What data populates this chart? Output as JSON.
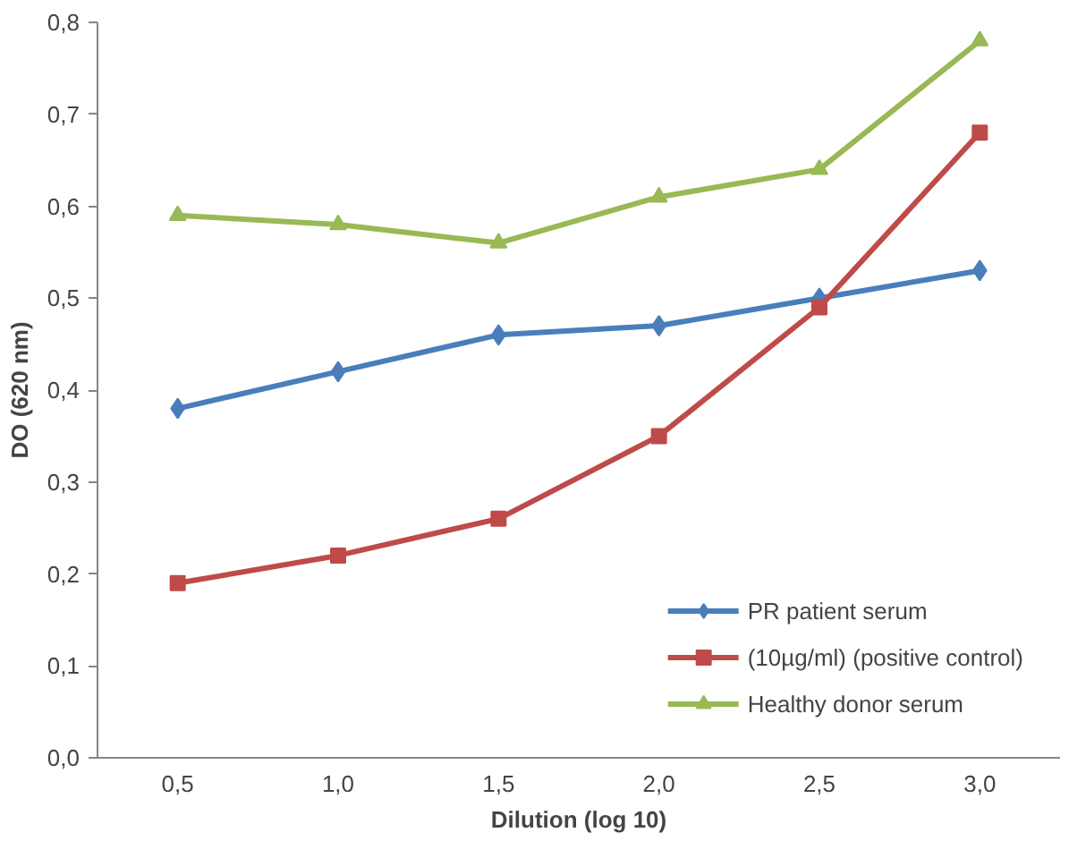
{
  "chart_data": {
    "type": "line",
    "xlabel": "Dilution (log 10)",
    "ylabel": "DO (620 nm)",
    "categories": [
      "0,5",
      "1,0",
      "1,5",
      "2,0",
      "2,5",
      "3,0"
    ],
    "ylim": [
      0,
      0.8
    ],
    "yticks": [
      {
        "value": 0,
        "label": "0,0"
      },
      {
        "value": 0.1,
        "label": "0,1"
      },
      {
        "value": 0.2,
        "label": "0,2"
      },
      {
        "value": 0.3,
        "label": "0,3"
      },
      {
        "value": 0.4,
        "label": "0,4"
      },
      {
        "value": 0.5,
        "label": "0,5"
      },
      {
        "value": 0.6,
        "label": "0,6"
      },
      {
        "value": 0.7,
        "label": "0,7"
      },
      {
        "value": 0.8,
        "label": "0,8"
      }
    ],
    "grid": false,
    "legend": "bottom right",
    "series": [
      {
        "name": "PR patient serum",
        "color": "#4a7ebb",
        "marker": "diamond",
        "values": [
          0.38,
          0.42,
          0.46,
          0.47,
          0.5,
          0.53
        ]
      },
      {
        "name": "(10µg/ml) (positive control)",
        "color": "#be4b48",
        "marker": "square",
        "values": [
          0.19,
          0.22,
          0.26,
          0.35,
          0.49,
          0.68
        ]
      },
      {
        "name": "Healthy donor serum",
        "color": "#98b954",
        "marker": "triangle",
        "values": [
          0.59,
          0.58,
          0.56,
          0.61,
          0.64,
          0.78
        ]
      }
    ]
  }
}
